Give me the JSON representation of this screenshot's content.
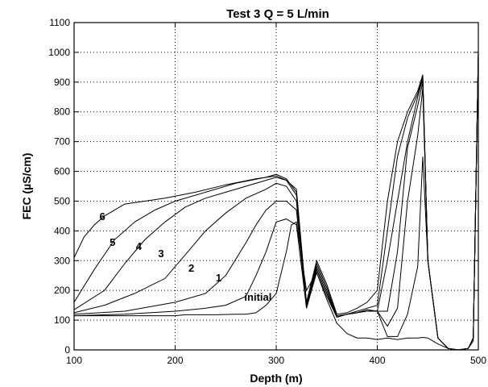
{
  "chart_data": {
    "type": "line",
    "title": "Test 3  Q = 5 L/min",
    "xlabel": "Depth (m)",
    "ylabel": "FEC (µS/cm)",
    "xlim": [
      100,
      500
    ],
    "ylim": [
      0,
      1100
    ],
    "xticks": [
      100,
      200,
      300,
      400,
      500
    ],
    "yticks": [
      0,
      100,
      200,
      300,
      400,
      500,
      600,
      700,
      800,
      900,
      1000,
      1100
    ],
    "grid": true,
    "series": [
      {
        "name": "initial",
        "x": [
          100,
          150,
          200,
          210,
          240,
          260,
          270,
          280,
          290,
          300,
          310,
          315,
          320,
          330,
          340,
          350,
          360,
          370,
          380,
          390,
          400,
          410,
          420,
          430,
          440,
          445,
          450,
          460,
          470,
          480,
          490,
          495,
          500
        ],
        "y": [
          115,
          115,
          115,
          118,
          118,
          120,
          120,
          125,
          150,
          190,
          330,
          420,
          430,
          200,
          260,
          170,
          90,
          55,
          40,
          40,
          35,
          40,
          35,
          40,
          40,
          42,
          40,
          20,
          5,
          0,
          5,
          30,
          1000
        ]
      },
      {
        "name": "1",
        "x": [
          100,
          150,
          200,
          230,
          250,
          270,
          280,
          290,
          300,
          310,
          320,
          330,
          340,
          350,
          360,
          370,
          380,
          390,
          400,
          410,
          420,
          430,
          440,
          445,
          450,
          460,
          470,
          480,
          490,
          495,
          500
        ],
        "y": [
          115,
          120,
          130,
          140,
          150,
          180,
          250,
          330,
          430,
          440,
          420,
          140,
          260,
          180,
          110,
          120,
          125,
          130,
          130,
          45,
          45,
          120,
          280,
          650,
          300,
          40,
          5,
          0,
          5,
          40,
          1000
        ]
      },
      {
        "name": "2",
        "x": [
          100,
          150,
          200,
          230,
          250,
          270,
          280,
          290,
          300,
          310,
          320,
          330,
          340,
          350,
          360,
          370,
          380,
          390,
          400,
          410,
          420,
          430,
          440,
          445,
          450,
          460,
          470,
          480,
          490,
          495,
          500
        ],
        "y": [
          120,
          130,
          160,
          190,
          250,
          360,
          420,
          470,
          500,
          500,
          470,
          140,
          270,
          190,
          110,
          120,
          125,
          135,
          130,
          80,
          140,
          500,
          720,
          880,
          300,
          40,
          5,
          0,
          5,
          40,
          1000
        ]
      },
      {
        "name": "3",
        "x": [
          100,
          130,
          160,
          190,
          210,
          230,
          250,
          270,
          290,
          300,
          310,
          320,
          330,
          340,
          350,
          360,
          370,
          380,
          390,
          400,
          410,
          420,
          430,
          440,
          445,
          450,
          460,
          470,
          480,
          490,
          495,
          500
        ],
        "y": [
          125,
          150,
          190,
          240,
          320,
          400,
          460,
          510,
          540,
          560,
          550,
          500,
          150,
          270,
          190,
          110,
          120,
          125,
          135,
          130,
          130,
          330,
          680,
          820,
          900,
          300,
          40,
          5,
          0,
          5,
          40,
          1000
        ]
      },
      {
        "name": "4",
        "x": [
          100,
          130,
          150,
          170,
          190,
          210,
          230,
          250,
          270,
          290,
          300,
          310,
          320,
          330,
          340,
          350,
          360,
          370,
          380,
          390,
          400,
          410,
          420,
          430,
          440,
          445,
          450,
          460,
          470,
          480,
          490,
          495,
          500
        ],
        "y": [
          135,
          200,
          290,
          370,
          430,
          480,
          510,
          530,
          550,
          570,
          580,
          570,
          520,
          150,
          280,
          200,
          110,
          120,
          125,
          135,
          130,
          300,
          500,
          700,
          850,
          910,
          300,
          40,
          5,
          0,
          5,
          40,
          1000
        ]
      },
      {
        "name": "5",
        "x": [
          100,
          120,
          140,
          160,
          180,
          200,
          230,
          260,
          290,
          300,
          310,
          320,
          330,
          340,
          350,
          360,
          370,
          380,
          390,
          400,
          410,
          420,
          430,
          440,
          445,
          450,
          460,
          470,
          480,
          490,
          495,
          500
        ],
        "y": [
          160,
          270,
          370,
          430,
          470,
          500,
          530,
          560,
          580,
          590,
          575,
          530,
          150,
          290,
          210,
          115,
          120,
          130,
          140,
          150,
          400,
          650,
          780,
          860,
          920,
          300,
          40,
          5,
          0,
          5,
          40,
          1000
        ]
      },
      {
        "name": "6",
        "x": [
          100,
          110,
          120,
          130,
          150,
          170,
          190,
          220,
          250,
          280,
          300,
          310,
          320,
          330,
          340,
          350,
          360,
          370,
          380,
          390,
          400,
          410,
          420,
          430,
          440,
          445,
          450,
          460,
          470,
          480,
          490,
          495,
          500
        ],
        "y": [
          310,
          380,
          420,
          450,
          490,
          500,
          510,
          530,
          555,
          575,
          585,
          570,
          540,
          160,
          300,
          220,
          120,
          125,
          140,
          160,
          200,
          500,
          700,
          800,
          870,
          925,
          300,
          40,
          5,
          0,
          5,
          40,
          1000
        ]
      }
    ],
    "curve_labels": [
      {
        "text": "initial",
        "x": 282,
        "y": 165
      },
      {
        "text": "1",
        "x": 243,
        "y": 230
      },
      {
        "text": "2",
        "x": 216,
        "y": 263
      },
      {
        "text": "3",
        "x": 186,
        "y": 311
      },
      {
        "text": "4",
        "x": 164,
        "y": 336
      },
      {
        "text": "5",
        "x": 138,
        "y": 350
      },
      {
        "text": "6",
        "x": 128,
        "y": 436
      }
    ]
  }
}
